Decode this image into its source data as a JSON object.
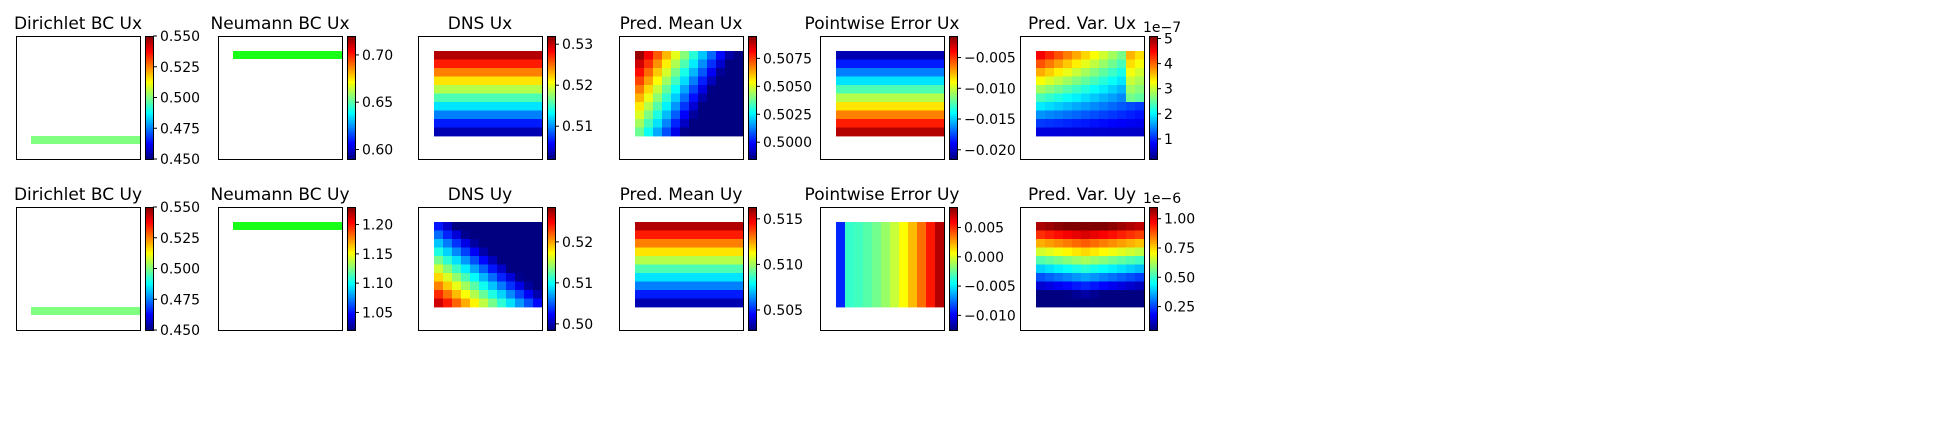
{
  "chart_data": [
    {
      "type": "heatmap",
      "title": "Dirichlet BC Ux",
      "field": "bc_dirichlet",
      "colorbar": {
        "min": 0.45,
        "max": 0.55,
        "ticks": [
          "0.450",
          "0.475",
          "0.500",
          "0.525",
          "0.550"
        ],
        "ticks_val": [
          0.45,
          0.475,
          0.5,
          0.525,
          0.55
        ]
      }
    },
    {
      "type": "heatmap",
      "title": "Neumann BC Ux",
      "field": "bc_neumann",
      "colorbar": {
        "min": 0.59,
        "max": 0.72,
        "ticks": [
          "0.60",
          "0.65",
          "0.70"
        ],
        "ticks_val": [
          0.6,
          0.65,
          0.7
        ]
      }
    },
    {
      "type": "heatmap",
      "title": "DNS Ux",
      "field": "dns_ux",
      "colorbar": {
        "min": 0.502,
        "max": 0.532,
        "ticks": [
          "0.51",
          "0.52",
          "0.53"
        ],
        "ticks_val": [
          0.51,
          0.52,
          0.53
        ]
      }
    },
    {
      "type": "heatmap",
      "title": "Pred. Mean Ux",
      "field": "mean_ux",
      "colorbar": {
        "min": 0.4985,
        "max": 0.5095,
        "ticks": [
          "0.5000",
          "0.5025",
          "0.5050",
          "0.5075"
        ],
        "ticks_val": [
          0.5,
          0.5025,
          0.505,
          0.5075
        ]
      }
    },
    {
      "type": "heatmap",
      "title": "Pointwise Error Ux",
      "field": "err_ux",
      "colorbar": {
        "min": -0.0215,
        "max": -0.0015,
        "ticks": [
          "−0.020",
          "−0.015",
          "−0.010",
          "−0.005"
        ],
        "ticks_val": [
          -0.02,
          -0.015,
          -0.01,
          -0.005
        ]
      }
    },
    {
      "type": "heatmap",
      "title": "Pred. Var. Ux",
      "field": "var_ux",
      "colorbar": {
        "min": 0.2,
        "max": 5.1,
        "ticks": [
          "1",
          "2",
          "3",
          "4",
          "5"
        ],
        "ticks_val": [
          1,
          2,
          3,
          4,
          5
        ],
        "multiplier": "1e−7"
      }
    },
    {
      "type": "heatmap",
      "title": "Dirichlet BC Uy",
      "field": "bc_dirichlet",
      "colorbar": {
        "min": 0.45,
        "max": 0.55,
        "ticks": [
          "0.450",
          "0.475",
          "0.500",
          "0.525",
          "0.550"
        ],
        "ticks_val": [
          0.45,
          0.475,
          0.5,
          0.525,
          0.55
        ]
      }
    },
    {
      "type": "heatmap",
      "title": "Neumann BC Uy",
      "field": "bc_neumann",
      "colorbar": {
        "min": 1.02,
        "max": 1.23,
        "ticks": [
          "1.05",
          "1.10",
          "1.15",
          "1.20"
        ],
        "ticks_val": [
          1.05,
          1.1,
          1.15,
          1.2
        ]
      }
    },
    {
      "type": "heatmap",
      "title": "DNS Uy",
      "field": "dns_uy",
      "colorbar": {
        "min": 0.4985,
        "max": 0.5285,
        "ticks": [
          "0.50",
          "0.51",
          "0.52"
        ],
        "ticks_val": [
          0.5,
          0.51,
          0.52
        ]
      }
    },
    {
      "type": "heatmap",
      "title": "Pred. Mean Uy",
      "field": "mean_uy",
      "colorbar": {
        "min": 0.5028,
        "max": 0.5163,
        "ticks": [
          "0.505",
          "0.510",
          "0.515"
        ],
        "ticks_val": [
          0.505,
          0.51,
          0.515
        ]
      }
    },
    {
      "type": "heatmap",
      "title": "Pointwise Error Uy",
      "field": "err_uy",
      "colorbar": {
        "min": -0.0125,
        "max": 0.0085,
        "ticks": [
          "−0.010",
          "−0.005",
          "0.000",
          "0.005"
        ],
        "ticks_val": [
          -0.01,
          -0.005,
          0,
          0.005
        ]
      }
    },
    {
      "type": "heatmap",
      "title": "Pred. Var. Uy",
      "field": "var_uy",
      "colorbar": {
        "min": 0.05,
        "max": 1.1,
        "ticks": [
          "0.25",
          "0.50",
          "0.75",
          "1.00"
        ],
        "ticks_val": [
          0.25,
          0.5,
          0.75,
          1.0
        ],
        "multiplier": "1e−6"
      }
    }
  ],
  "colors": {
    "colormap": "jet",
    "frame": "#000000",
    "background": "#ffffff"
  }
}
